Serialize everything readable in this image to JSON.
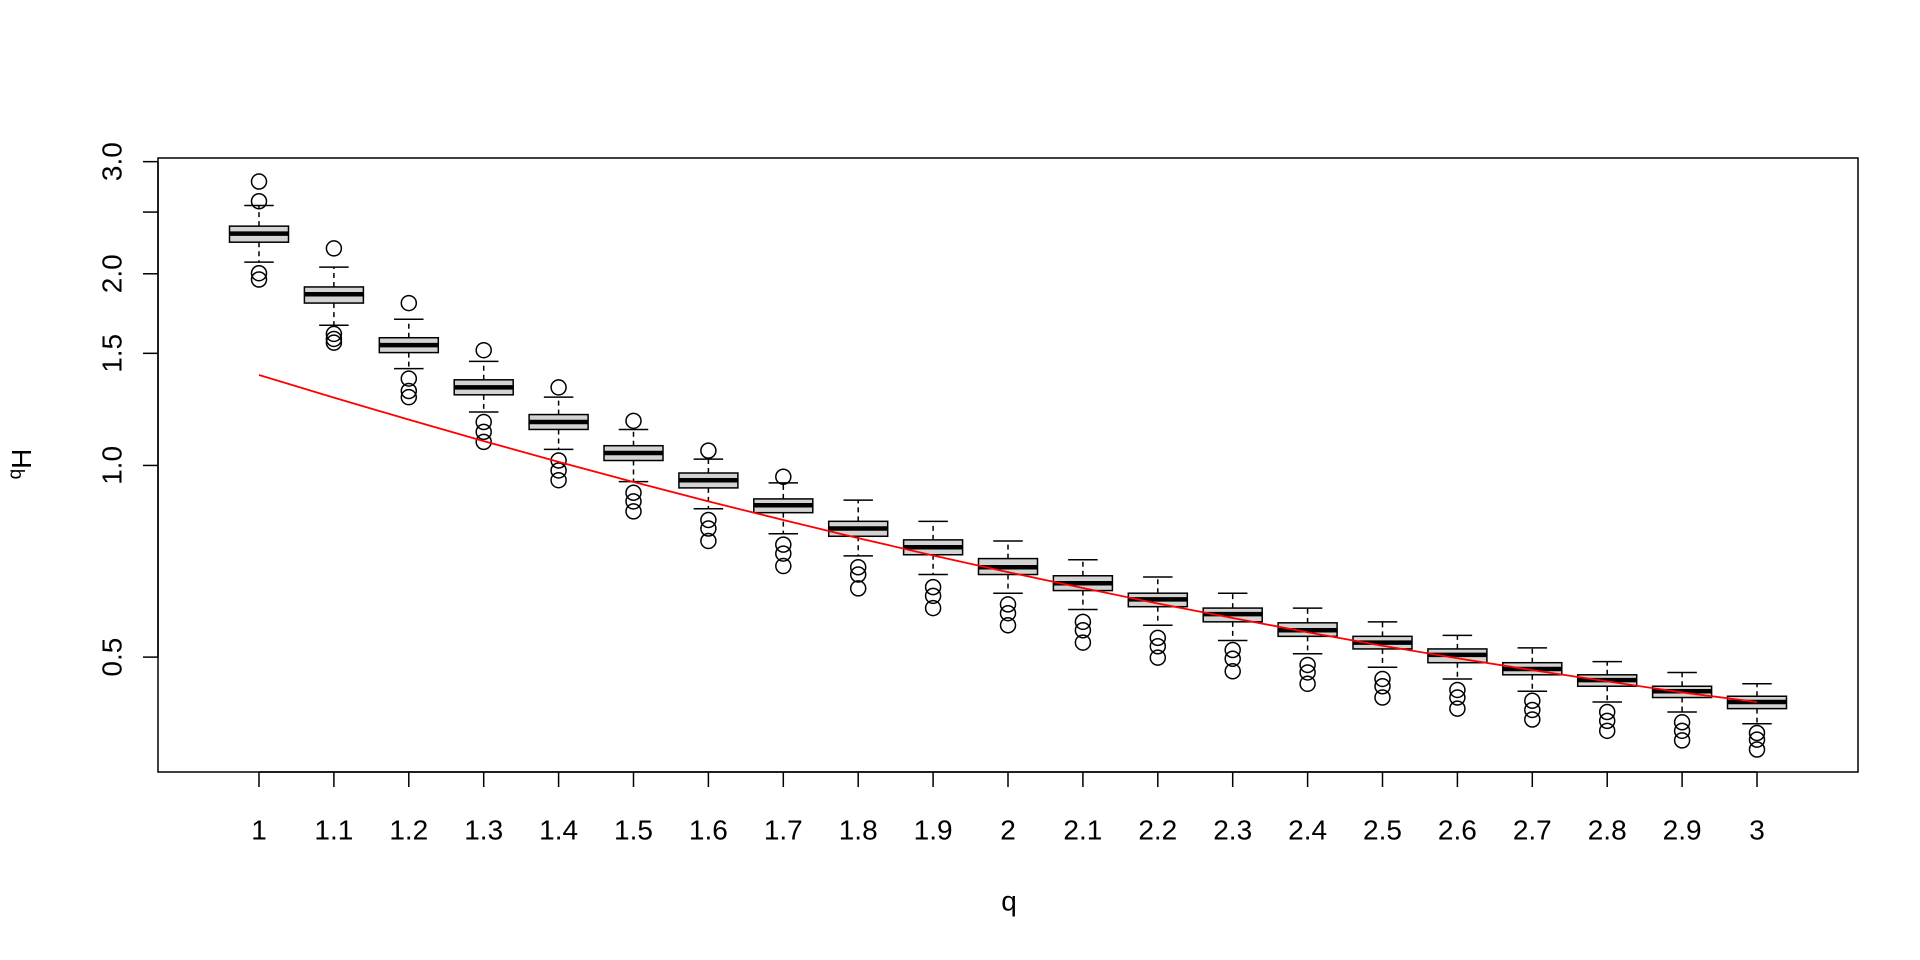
{
  "chart_data": {
    "type": "box",
    "xlabel": "q",
    "ylabel_sup": "q",
    "ylabel": "H",
    "categories": [
      "1",
      "1.1",
      "1.2",
      "1.3",
      "1.4",
      "1.5",
      "1.6",
      "1.7",
      "1.8",
      "1.9",
      "2",
      "2.1",
      "2.2",
      "2.3",
      "2.4",
      "2.5",
      "2.6",
      "2.7",
      "2.8",
      "2.9",
      "3"
    ],
    "log_y": true,
    "ylim": [
      0.33,
      3.04
    ],
    "yticks": [
      0.5,
      {
        "value": 1,
        "label": "1.0"
      },
      1.5,
      {
        "value": 2,
        "label": "2.0"
      },
      {
        "value": 2.5,
        "label": null
      },
      {
        "value": 3,
        "label": "3.0"
      }
    ],
    "box_color": "#d3d3d3",
    "boxes": [
      {
        "whislo": 2.086,
        "q1": 2.242,
        "med": 2.313,
        "q3": 2.376,
        "whishi": 2.56,
        "fliers": [
          2.792,
          2.6,
          2.004,
          1.959
        ]
      },
      {
        "whislo": 1.66,
        "q1": 1.799,
        "med": 1.857,
        "q3": 1.907,
        "whishi": 2.049,
        "fliers": [
          2.192,
          1.609,
          1.58,
          1.559
        ]
      },
      {
        "whislo": 1.419,
        "q1": 1.504,
        "med": 1.545,
        "q3": 1.587,
        "whishi": 1.697,
        "fliers": [
          1.799,
          1.369,
          1.309,
          1.28
        ]
      },
      {
        "whislo": 1.213,
        "q1": 1.291,
        "med": 1.326,
        "q3": 1.363,
        "whishi": 1.457,
        "fliers": [
          1.517,
          1.17,
          1.129,
          1.089
        ]
      },
      {
        "whislo": 1.06,
        "q1": 1.139,
        "med": 1.17,
        "q3": 1.202,
        "whishi": 1.28,
        "fliers": [
          1.326,
          1.018,
          0.982,
          0.948
        ]
      },
      {
        "whislo": 0.943,
        "q1": 1.018,
        "med": 1.046,
        "q3": 1.074,
        "whishi": 1.139,
        "fliers": [
          1.175,
          0.906,
          0.878,
          0.847
        ]
      },
      {
        "whislo": 0.855,
        "q1": 0.922,
        "med": 0.948,
        "q3": 0.973,
        "whishi": 1.023,
        "fliers": [
          1.055,
          0.821,
          0.796,
          0.761
        ]
      },
      {
        "whislo": 0.781,
        "q1": 0.843,
        "med": 0.866,
        "q3": 0.886,
        "whishi": 0.939,
        "fliers": [
          0.96,
          0.751,
          0.727,
          0.695
        ]
      },
      {
        "whislo": 0.721,
        "q1": 0.774,
        "med": 0.796,
        "q3": 0.817,
        "whishi": 0.882,
        "fliers": [
          0.692,
          0.674,
          0.641
        ]
      },
      {
        "whislo": 0.674,
        "q1": 0.724,
        "med": 0.744,
        "q3": 0.764,
        "whishi": 0.817,
        "fliers": [
          0.644,
          0.624,
          0.597
        ]
      },
      {
        "whislo": 0.63,
        "q1": 0.674,
        "med": 0.692,
        "q3": 0.714,
        "whishi": 0.761,
        "fliers": [
          0.605,
          0.586,
          0.561
        ]
      },
      {
        "whislo": 0.594,
        "q1": 0.636,
        "med": 0.653,
        "q3": 0.671,
        "whishi": 0.711,
        "fliers": [
          0.568,
          0.551,
          0.527
        ]
      },
      {
        "whislo": 0.561,
        "q1": 0.6,
        "med": 0.616,
        "q3": 0.63,
        "whishi": 0.668,
        "fliers": [
          0.536,
          0.52,
          0.499
        ]
      },
      {
        "whislo": 0.531,
        "q1": 0.568,
        "med": 0.584,
        "q3": 0.597,
        "whishi": 0.63,
        "fliers": [
          0.513,
          0.497,
          0.475
        ]
      },
      {
        "whislo": 0.506,
        "q1": 0.539,
        "med": 0.551,
        "q3": 0.566,
        "whishi": 0.597,
        "fliers": [
          0.486,
          0.473,
          0.454
        ]
      },
      {
        "whislo": 0.482,
        "q1": 0.515,
        "med": 0.527,
        "q3": 0.539,
        "whishi": 0.568,
        "fliers": [
          0.462,
          0.45,
          0.432
        ]
      },
      {
        "whislo": 0.462,
        "q1": 0.49,
        "med": 0.504,
        "q3": 0.515,
        "whishi": 0.541,
        "fliers": [
          0.444,
          0.432,
          0.415
        ]
      },
      {
        "whislo": 0.442,
        "q1": 0.469,
        "med": 0.479,
        "q3": 0.49,
        "whishi": 0.517,
        "fliers": [
          0.427,
          0.413,
          0.399
        ]
      },
      {
        "whislo": 0.425,
        "q1": 0.45,
        "med": 0.46,
        "q3": 0.469,
        "whishi": 0.492,
        "fliers": [
          0.41,
          0.397,
          0.383
        ]
      },
      {
        "whislo": 0.41,
        "q1": 0.432,
        "med": 0.442,
        "q3": 0.45,
        "whishi": 0.473,
        "fliers": [
          0.395,
          0.383,
          0.37
        ]
      },
      {
        "whislo": 0.393,
        "q1": 0.415,
        "med": 0.425,
        "q3": 0.434,
        "whishi": 0.454,
        "fliers": [
          0.38,
          0.371,
          0.358
        ]
      }
    ],
    "line_color": "#ff0000",
    "line_values": [
      1.387,
      1.278,
      1.18,
      1.092,
      1.013,
      0.942,
      0.878,
      0.821,
      0.769,
      0.722,
      0.68,
      0.642,
      0.607,
      0.576,
      0.547,
      0.521,
      0.498,
      0.477,
      0.458,
      0.44,
      0.425
    ]
  }
}
